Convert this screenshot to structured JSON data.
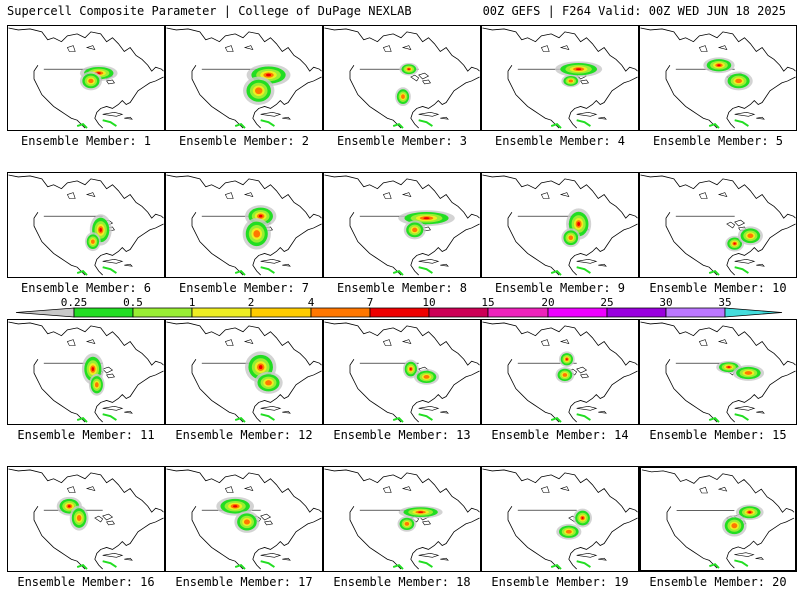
{
  "header": {
    "left": "Supercell Composite Parameter | College of DuPage NEXLAB",
    "right": "00Z GEFS | F264 Valid: 00Z WED JUN 18 2025"
  },
  "colorbar": {
    "labels": [
      "0.25",
      "0.5",
      "1",
      "2",
      "4",
      "7",
      "10",
      "15",
      "20",
      "25",
      "30",
      "35"
    ],
    "colors": [
      "#c8c8c8",
      "#22dd22",
      "#99ee33",
      "#eeee22",
      "#ffcc00",
      "#ff7700",
      "#ee0000",
      "#cc0055",
      "#ee22bb",
      "#ee00ff",
      "#9900dd",
      "#bb77ff",
      "#44dddd"
    ]
  },
  "members": [
    {
      "label": "Ensemble Member: 1",
      "selected": false
    },
    {
      "label": "Ensemble Member: 2",
      "selected": false
    },
    {
      "label": "Ensemble Member: 3",
      "selected": false
    },
    {
      "label": "Ensemble Member: 4",
      "selected": false
    },
    {
      "label": "Ensemble Member: 5",
      "selected": false
    },
    {
      "label": "Ensemble Member: 6",
      "selected": false
    },
    {
      "label": "Ensemble Member: 7",
      "selected": false
    },
    {
      "label": "Ensemble Member: 8",
      "selected": false
    },
    {
      "label": "Ensemble Member: 9",
      "selected": false
    },
    {
      "label": "Ensemble Member: 10",
      "selected": false
    },
    {
      "label": "Ensemble Member: 11",
      "selected": false
    },
    {
      "label": "Ensemble Member: 12",
      "selected": false
    },
    {
      "label": "Ensemble Member: 13",
      "selected": false
    },
    {
      "label": "Ensemble Member: 14",
      "selected": false
    },
    {
      "label": "Ensemble Member: 15",
      "selected": false
    },
    {
      "label": "Ensemble Member: 16",
      "selected": false
    },
    {
      "label": "Ensemble Member: 17",
      "selected": false
    },
    {
      "label": "Ensemble Member: 18",
      "selected": false
    },
    {
      "label": "Ensemble Member: 19",
      "selected": false
    },
    {
      "label": "Ensemble Member: 20",
      "selected": true
    }
  ]
}
